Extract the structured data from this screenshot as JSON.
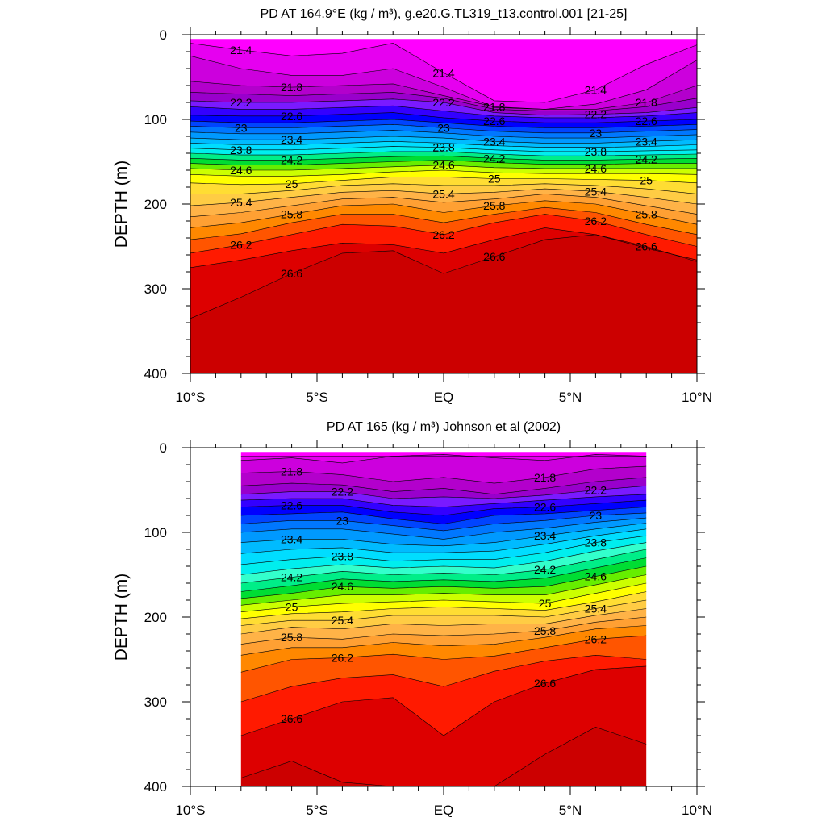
{
  "chart_data": [
    {
      "type": "contour",
      "title": "PD AT 164.9°E (kg / m³), g.e20.G.TL319_t13.control.001 [21-25]",
      "ylabel": "DEPTH (m)",
      "xlim": [
        -10,
        10
      ],
      "ylim": [
        400,
        0
      ],
      "x_ticks": [
        -10,
        -5,
        0,
        5,
        10
      ],
      "x_tick_labels": [
        "10°S",
        "5°S",
        "EQ",
        "5°N",
        "10°N"
      ],
      "y_ticks": [
        0,
        100,
        200,
        300,
        400
      ],
      "y_tick_labels": [
        "0",
        "100",
        "200",
        "300",
        "400"
      ],
      "data_x_range": [
        -10,
        10
      ],
      "data_depth_top": 5,
      "contour_levels": [
        21.4,
        21.6,
        21.8,
        22.0,
        22.2,
        22.4,
        22.6,
        22.8,
        23.0,
        23.2,
        23.4,
        23.6,
        23.8,
        24.0,
        24.2,
        24.4,
        24.6,
        24.8,
        25.0,
        25.2,
        25.4,
        25.6,
        25.8,
        26.0,
        26.2,
        26.4,
        26.6
      ],
      "contour_labels": [
        "21.4",
        "21.8",
        "22.2",
        "22.6",
        "23",
        "23.4",
        "23.8",
        "24.2",
        "24.6",
        "25",
        "25.4",
        "25.8",
        "26.2",
        "26.6"
      ],
      "x": [
        -10,
        -8,
        -6,
        -4,
        -2,
        0,
        2,
        4,
        6,
        8,
        10
      ],
      "isopycnal_depths": [
        [
          10,
          18,
          25,
          22,
          10,
          45,
          78,
          80,
          65,
          35,
          12
        ],
        [
          25,
          40,
          48,
          48,
          40,
          62,
          86,
          88,
          82,
          65,
          30
        ],
        [
          55,
          60,
          62,
          60,
          58,
          72,
          85,
          88,
          88,
          80,
          60
        ],
        [
          68,
          70,
          72,
          70,
          68,
          75,
          88,
          90,
          90,
          85,
          75
        ],
        [
          78,
          80,
          80,
          78,
          76,
          80,
          92,
          95,
          94,
          92,
          86
        ],
        [
          85,
          88,
          88,
          86,
          84,
          90,
          96,
          98,
          98,
          96,
          92
        ],
        [
          95,
          96,
          96,
          94,
          92,
          98,
          102,
          104,
          104,
          102,
          100
        ],
        [
          102,
          104,
          104,
          102,
          100,
          104,
          108,
          110,
          110,
          108,
          106
        ],
        [
          108,
          110,
          110,
          108,
          106,
          110,
          114,
          116,
          116,
          114,
          112
        ],
        [
          115,
          117,
          117,
          115,
          113,
          116,
          120,
          122,
          122,
          120,
          118
        ],
        [
          122,
          124,
          124,
          122,
          120,
          122,
          126,
          128,
          128,
          126,
          124
        ],
        [
          128,
          130,
          130,
          128,
          126,
          128,
          131,
          133,
          133,
          132,
          130
        ],
        [
          134,
          136,
          136,
          134,
          132,
          133,
          136,
          138,
          138,
          137,
          136
        ],
        [
          140,
          142,
          142,
          140,
          138,
          138,
          141,
          143,
          143,
          142,
          141
        ],
        [
          146,
          148,
          148,
          146,
          144,
          143,
          146,
          148,
          148,
          147,
          146
        ],
        [
          152,
          154,
          154,
          152,
          150,
          148,
          151,
          153,
          153,
          152,
          152
        ],
        [
          158,
          160,
          160,
          158,
          156,
          154,
          157,
          158,
          158,
          158,
          158
        ],
        [
          165,
          167,
          167,
          165,
          162,
          160,
          163,
          164,
          164,
          164,
          165
        ],
        [
          175,
          177,
          176,
          172,
          168,
          168,
          170,
          170,
          171,
          172,
          175
        ],
        [
          188,
          188,
          184,
          178,
          176,
          178,
          178,
          176,
          178,
          182,
          188
        ],
        [
          202,
          198,
          192,
          186,
          184,
          188,
          186,
          182,
          185,
          192,
          200
        ],
        [
          215,
          210,
          202,
          194,
          192,
          198,
          194,
          188,
          192,
          202,
          212
        ],
        [
          228,
          222,
          212,
          202,
          200,
          210,
          202,
          196,
          200,
          212,
          224
        ],
        [
          242,
          235,
          222,
          212,
          212,
          222,
          212,
          204,
          210,
          224,
          236
        ],
        [
          258,
          248,
          236,
          224,
          226,
          236,
          222,
          212,
          220,
          236,
          250
        ],
        [
          275,
          266,
          255,
          246,
          248,
          258,
          242,
          228,
          236,
          252,
          266
        ],
        [
          335,
          310,
          282,
          258,
          255,
          282,
          262,
          242,
          236,
          250,
          268
        ]
      ]
    },
    {
      "type": "contour",
      "title": "PD AT 165 (kg / m³) Johnson et al (2002)",
      "ylabel": "DEPTH (m)",
      "xlim": [
        -10,
        10
      ],
      "ylim": [
        400,
        0
      ],
      "x_ticks": [
        -10,
        -5,
        0,
        5,
        10
      ],
      "x_tick_labels": [
        "10°S",
        "5°S",
        "EQ",
        "5°N",
        "10°N"
      ],
      "y_ticks": [
        0,
        100,
        200,
        300,
        400
      ],
      "y_tick_labels": [
        "0",
        "100",
        "200",
        "300",
        "400"
      ],
      "data_x_range": [
        -8,
        8
      ],
      "data_depth_top": 5,
      "contour_levels": [
        21.4,
        21.6,
        21.8,
        22.0,
        22.2,
        22.4,
        22.6,
        22.8,
        23.0,
        23.2,
        23.4,
        23.6,
        23.8,
        24.0,
        24.2,
        24.4,
        24.6,
        24.8,
        25.0,
        25.2,
        25.4,
        25.6,
        25.8,
        26.0,
        26.2,
        26.4,
        26.6,
        26.8
      ],
      "contour_labels": [
        "21.8",
        "22.2",
        "22.6",
        "23",
        "23.4",
        "23.8",
        "24.2",
        "24.6",
        "25",
        "25.4",
        "25.8",
        "26.2",
        "26.6"
      ],
      "x": [
        -8,
        -6,
        -4,
        -2,
        0,
        2,
        4,
        6,
        8
      ],
      "isopycnal_depths": [
        [
          10,
          10,
          10,
          10,
          10,
          10,
          10,
          10,
          10
        ],
        [
          15,
          12,
          18,
          10,
          8,
          12,
          15,
          8,
          10
        ],
        [
          30,
          28,
          32,
          40,
          35,
          42,
          35,
          25,
          22
        ],
        [
          45,
          42,
          44,
          52,
          48,
          55,
          48,
          40,
          35
        ],
        [
          55,
          52,
          52,
          60,
          58,
          60,
          56,
          50,
          45
        ],
        [
          62,
          60,
          60,
          68,
          70,
          66,
          62,
          58,
          55
        ],
        [
          70,
          68,
          68,
          76,
          80,
          72,
          70,
          66,
          62
        ],
        [
          80,
          78,
          76,
          84,
          90,
          80,
          78,
          74,
          70
        ],
        [
          90,
          86,
          86,
          92,
          98,
          90,
          86,
          80,
          77
        ],
        [
          100,
          96,
          96,
          102,
          108,
          100,
          95,
          88,
          83
        ],
        [
          112,
          108,
          108,
          114,
          116,
          112,
          104,
          96,
          89
        ],
        [
          125,
          120,
          118,
          124,
          124,
          122,
          114,
          104,
          96
        ],
        [
          138,
          132,
          128,
          134,
          132,
          132,
          124,
          112,
          104
        ],
        [
          150,
          143,
          138,
          142,
          140,
          142,
          134,
          122,
          112
        ],
        [
          160,
          153,
          146,
          150,
          148,
          150,
          144,
          132,
          120
        ],
        [
          170,
          163,
          155,
          158,
          156,
          158,
          154,
          142,
          130
        ],
        [
          178,
          172,
          164,
          166,
          164,
          166,
          164,
          152,
          140
        ],
        [
          186,
          180,
          174,
          174,
          172,
          174,
          174,
          162,
          150
        ],
        [
          194,
          188,
          184,
          182,
          180,
          182,
          184,
          172,
          160
        ],
        [
          202,
          196,
          194,
          190,
          188,
          190,
          192,
          182,
          170
        ],
        [
          210,
          204,
          204,
          198,
          198,
          198,
          200,
          190,
          180
        ],
        [
          220,
          212,
          214,
          208,
          210,
          208,
          208,
          198,
          190
        ],
        [
          232,
          224,
          226,
          220,
          222,
          220,
          216,
          206,
          200
        ],
        [
          245,
          236,
          236,
          230,
          234,
          232,
          224,
          214,
          210
        ],
        [
          265,
          250,
          248,
          244,
          250,
          246,
          236,
          226,
          222
        ],
        [
          300,
          282,
          272,
          268,
          282,
          264,
          252,
          245,
          250
        ],
        [
          340,
          320,
          300,
          295,
          340,
          300,
          278,
          262,
          258
        ],
        [
          390,
          370,
          395,
          400,
          400,
          400,
          362,
          330,
          350
        ]
      ]
    }
  ]
}
